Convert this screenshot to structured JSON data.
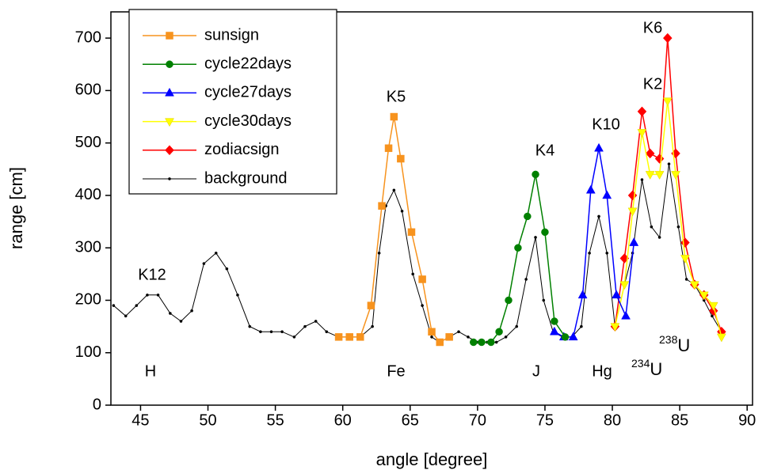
{
  "chart_data": {
    "type": "line",
    "xlabel": "angle [degree]",
    "ylabel": "range [cm]",
    "xlim": [
      42.8,
      90.4
    ],
    "ylim": [
      0,
      750
    ],
    "xticks": [
      45,
      50,
      55,
      60,
      65,
      70,
      75,
      80,
      85,
      90
    ],
    "yticks": [
      0,
      100,
      200,
      300,
      400,
      500,
      600,
      700
    ],
    "legend": "upper left",
    "annotations": [
      "K12",
      "H",
      "K5",
      "Fe",
      "K4",
      "J",
      "K10",
      "Hg",
      "K2",
      "K6",
      {
        "mass": "234",
        "symbol": "U"
      },
      {
        "mass": "238",
        "symbol": "U"
      }
    ],
    "series": [
      {
        "name": "sunsign",
        "color": "#f7931e",
        "marker": "square",
        "x": [
          59.7,
          60.5,
          61.3,
          62.1,
          62.9,
          63.4,
          63.8,
          64.3,
          65.1,
          65.9,
          66.6,
          67.2,
          67.9
        ],
        "values": [
          130,
          130,
          130,
          190,
          380,
          490,
          550,
          470,
          330,
          240,
          140,
          120,
          130
        ]
      },
      {
        "name": "cycle22days",
        "color": "#008000",
        "marker": "circle",
        "x": [
          69.7,
          70.3,
          71.0,
          71.6,
          72.3,
          73.0,
          73.7,
          74.3,
          75.0,
          75.7,
          76.5
        ],
        "values": [
          120,
          120,
          120,
          140,
          200,
          300,
          360,
          440,
          330,
          160,
          130
        ]
      },
      {
        "name": "cycle27days",
        "color": "#0000ff",
        "marker": "triangle-up",
        "x": [
          75.7,
          76.4,
          77.1,
          77.8,
          78.4,
          79.0,
          79.6,
          80.3,
          81.0,
          81.6
        ],
        "values": [
          140,
          130,
          130,
          210,
          410,
          490,
          400,
          210,
          170,
          310
        ]
      },
      {
        "name": "cycle30days",
        "color": "#ffff00",
        "marker": "triangle-down",
        "x": [
          80.2,
          80.9,
          81.5,
          82.2,
          82.8,
          83.5,
          84.1,
          84.7,
          85.4,
          86.1,
          86.8,
          87.5,
          88.1
        ],
        "values": [
          150,
          230,
          370,
          520,
          440,
          440,
          580,
          440,
          280,
          230,
          210,
          190,
          130
        ]
      },
      {
        "name": "zodiacsign",
        "color": "#ff0000",
        "marker": "diamond",
        "x": [
          80.2,
          80.9,
          81.5,
          82.2,
          82.8,
          83.5,
          84.1,
          84.7,
          85.4,
          86.1,
          86.8,
          87.5,
          88.1
        ],
        "values": [
          150,
          280,
          400,
          560,
          480,
          470,
          700,
          480,
          310,
          230,
          210,
          180,
          140
        ]
      },
      {
        "name": "background",
        "color": "#000000",
        "marker": "dot",
        "x": [
          43.0,
          43.9,
          44.7,
          45.5,
          46.3,
          47.2,
          48.0,
          48.8,
          49.7,
          50.6,
          51.4,
          52.2,
          53.1,
          53.9,
          54.7,
          55.5,
          56.4,
          57.2,
          58.0,
          58.8,
          59.7,
          60.5,
          61.3,
          62.2,
          62.7,
          63.2,
          63.8,
          64.4,
          65.2,
          65.9,
          66.6,
          67.2,
          67.9,
          68.6,
          69.3,
          70.0,
          70.7,
          71.4,
          72.1,
          72.9,
          73.6,
          74.3,
          74.9,
          75.6,
          76.3,
          77.0,
          77.7,
          78.3,
          79.0,
          79.6,
          80.2,
          80.9,
          81.5,
          82.2,
          82.9,
          83.5,
          84.2,
          84.9,
          85.5,
          86.1,
          86.8,
          87.4,
          88.1
        ],
        "values": [
          190,
          170,
          190,
          210,
          210,
          175,
          160,
          180,
          270,
          290,
          260,
          210,
          150,
          140,
          140,
          140,
          130,
          150,
          160,
          140,
          130,
          130,
          130,
          150,
          290,
          380,
          410,
          370,
          250,
          190,
          130,
          120,
          130,
          140,
          130,
          120,
          120,
          120,
          130,
          150,
          240,
          320,
          200,
          140,
          130,
          130,
          150,
          290,
          360,
          290,
          150,
          230,
          290,
          430,
          340,
          320,
          460,
          340,
          240,
          230,
          200,
          170,
          140
        ]
      }
    ]
  }
}
